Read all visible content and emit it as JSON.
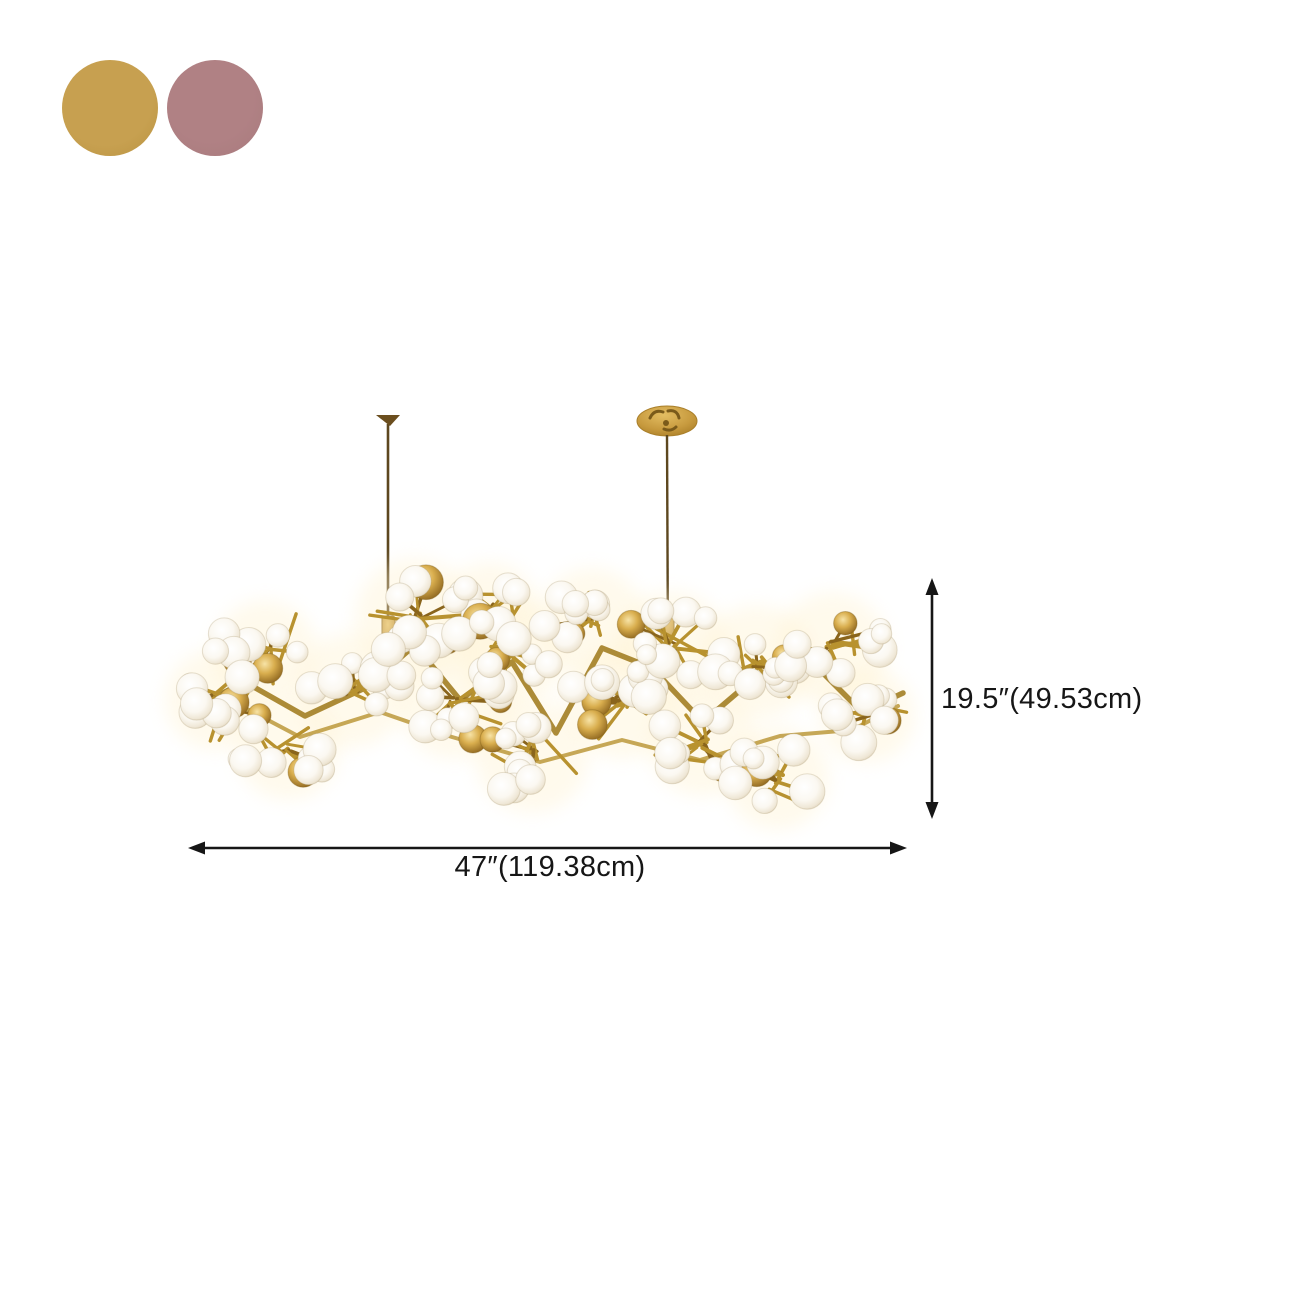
{
  "swatches": {
    "items": [
      {
        "id": "gold",
        "color": "#c7a050"
      },
      {
        "id": "mauve",
        "color": "#a87a7d"
      }
    ]
  },
  "product_image": {
    "name": "branch-cluster-chandelier",
    "gold": "#b8922f",
    "gold_dark": "#8a651c",
    "gold_light": "#e3bd62",
    "globe_white": "#f7f2e7",
    "wire": "#5d471f",
    "glow": "#fff2cf"
  },
  "dimensions": {
    "width_label": "47″(119.38cm)",
    "height_label": "19.5″(49.53cm)",
    "line_color": "#161616"
  }
}
